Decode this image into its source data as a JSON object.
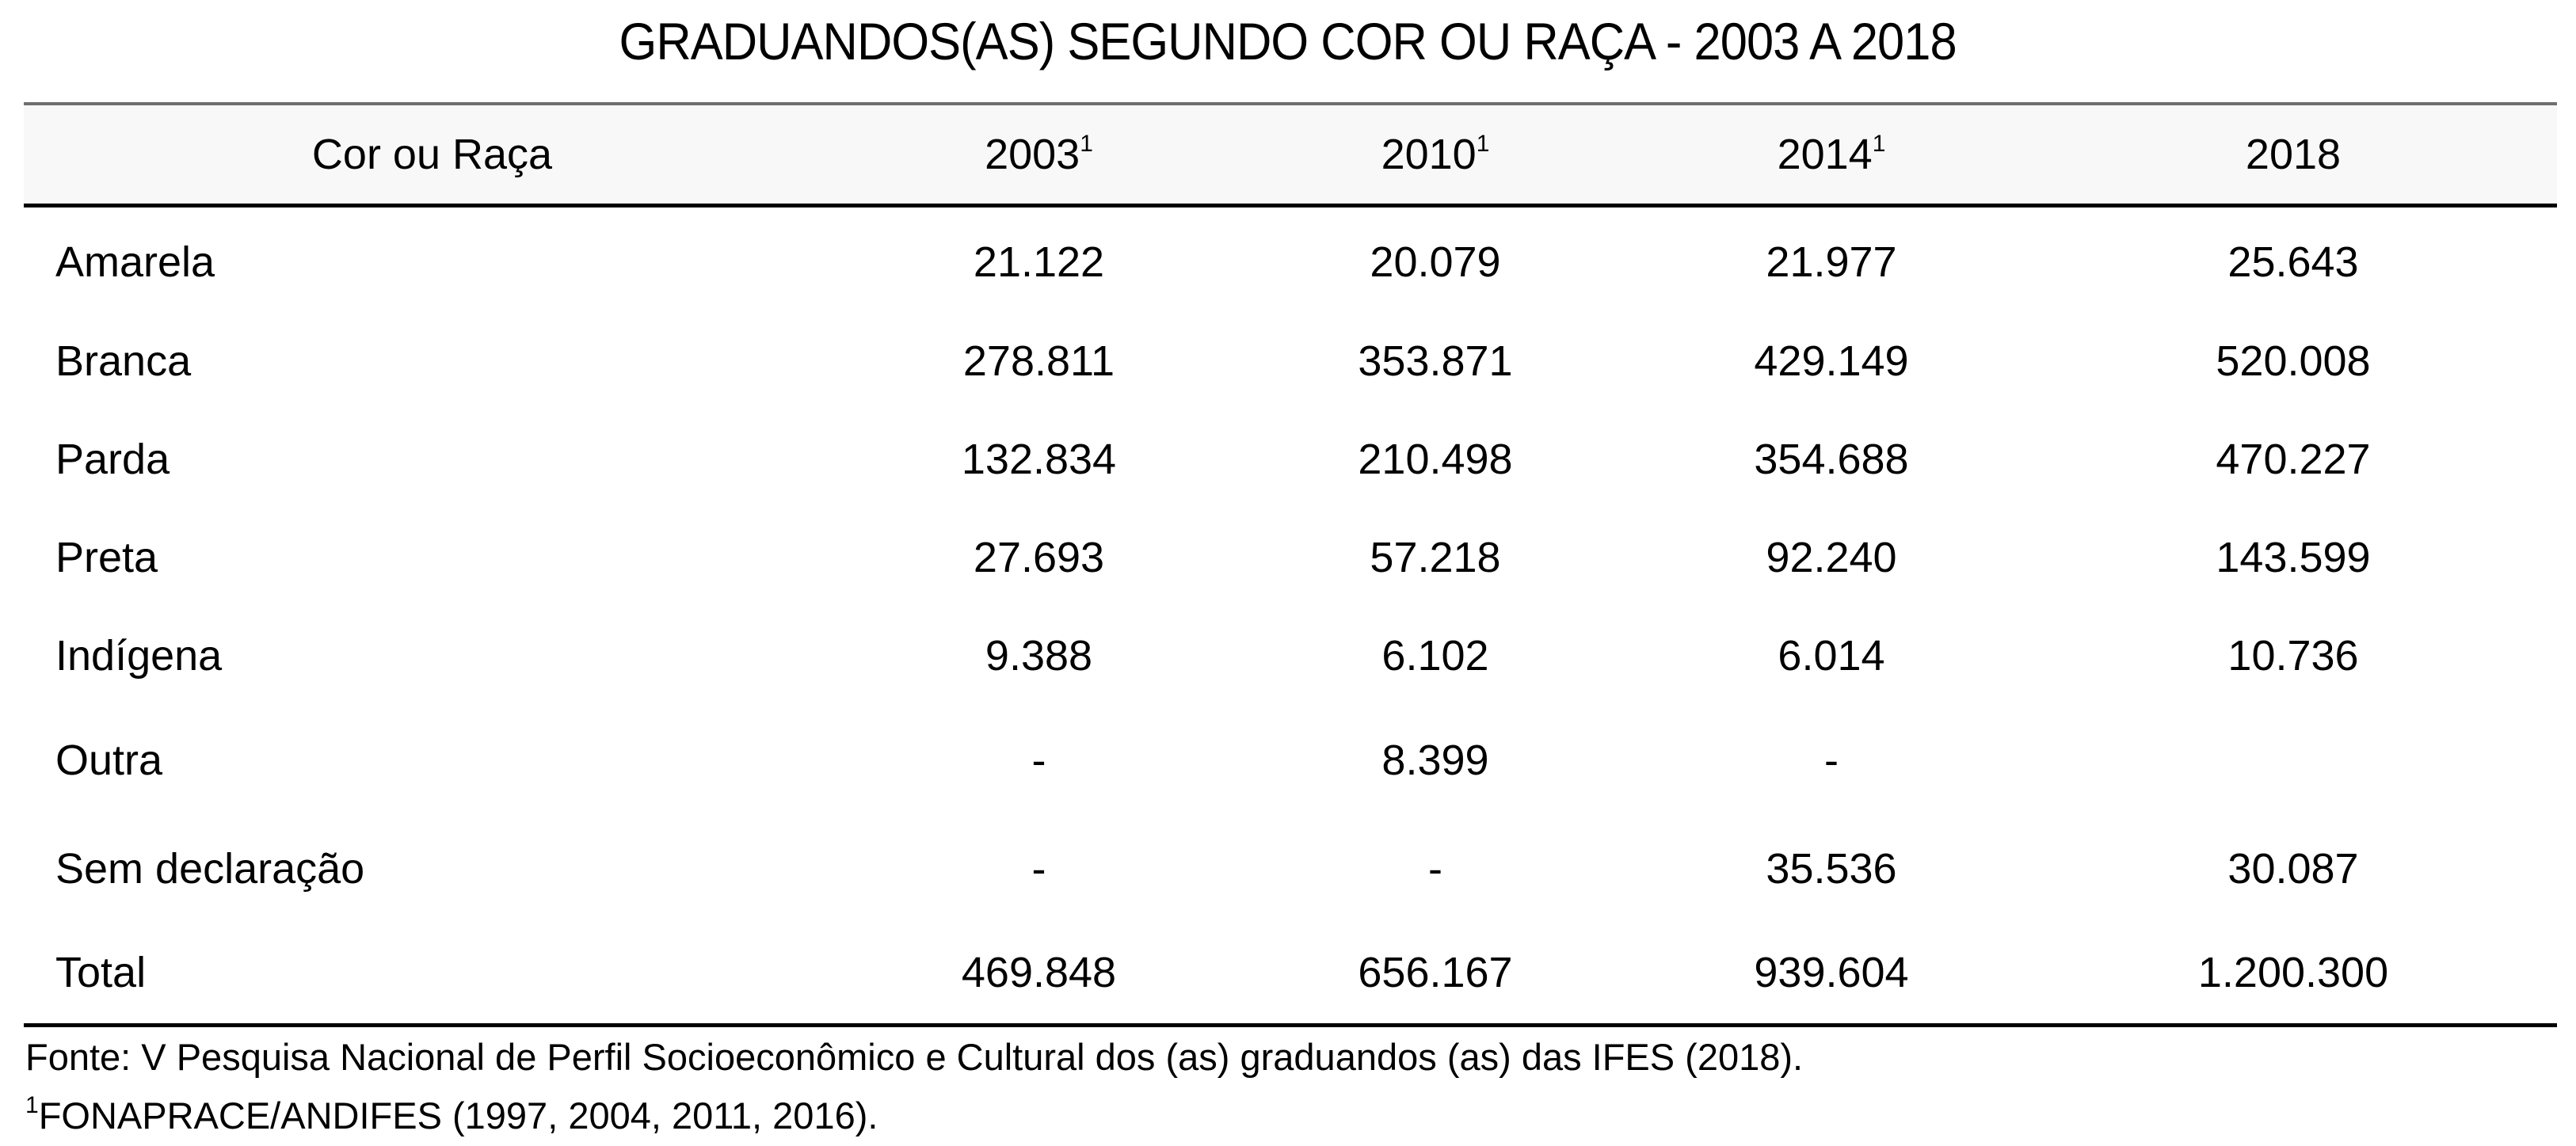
{
  "title": "GRADUANDOS(AS) SEGUNDO COR OU RAÇA - 2003 A 2018",
  "table": {
    "header": {
      "label": "Cor ou Raça",
      "columns": [
        {
          "year": "2003",
          "note": "1"
        },
        {
          "year": "2010",
          "note": "1"
        },
        {
          "year": "2014",
          "note": "1"
        },
        {
          "year": "2018",
          "note": ""
        }
      ]
    },
    "rows": [
      {
        "label": "Amarela",
        "values": [
          "21.122",
          "20.079",
          "21.977",
          "25.643"
        ]
      },
      {
        "label": "Branca",
        "values": [
          "278.811",
          "353.871",
          "429.149",
          "520.008"
        ]
      },
      {
        "label": "Parda",
        "values": [
          "132.834",
          "210.498",
          "354.688",
          "470.227"
        ]
      },
      {
        "label": "Preta",
        "values": [
          "27.693",
          "57.218",
          "92.240",
          "143.599"
        ]
      },
      {
        "label": "Indígena",
        "values": [
          "9.388",
          "6.102",
          "6.014",
          "10.736"
        ]
      },
      {
        "label": "Outra",
        "values": [
          "-",
          "8.399",
          "-",
          ""
        ]
      },
      {
        "label": "Sem declaração",
        "values": [
          "-",
          "-",
          "35.536",
          "30.087"
        ]
      },
      {
        "label": "Total",
        "values": [
          "469.848",
          "656.167",
          "939.604",
          "1.200.300"
        ]
      }
    ]
  },
  "footer": {
    "source": "Fonte: V Pesquisa Nacional de Perfil Socioeconômico e Cultural dos (as) graduandos (as) das IFES (2018).",
    "note_marker": "1",
    "note": "FONAPRACE/ANDIFES (1997, 2004, 2011, 2016)."
  },
  "colors": {
    "header_bg": "#f8f8f8",
    "top_rule": "#6f6f6f",
    "rule": "#000000",
    "text": "#000000"
  }
}
